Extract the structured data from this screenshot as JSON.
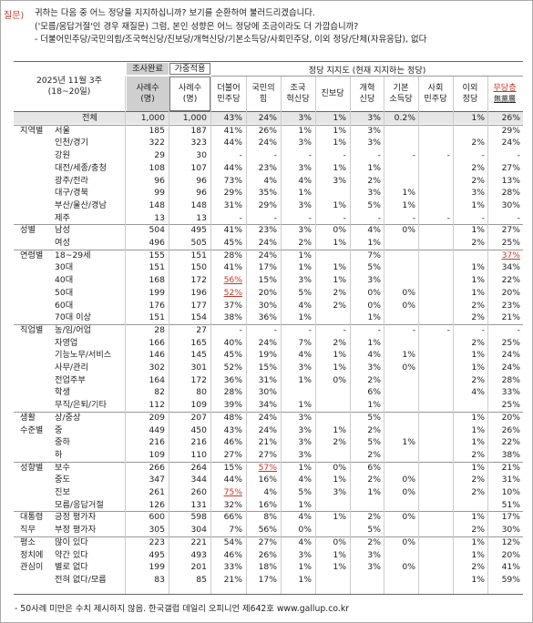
{
  "question": {
    "label": "질문)",
    "lines": [
      "귀하는 다음 중 어느 정당을 지지하십니까? 보기를 순환하여 불러드리겠습니다.",
      "('모름/응답거절'인 경우 재질문) 그럼, 본인 성향은 어느 정당에 조금이라도 더 가깝습니까?",
      "- 더불어민주당/국민의힘/조국혁신당/진보당/개혁신당/기본소득당/사회민주당, 이외 정당/단체(자유응답), 없다"
    ]
  },
  "table": {
    "period_line1": "2025년 11월 3주",
    "period_line2": "(18~20일)",
    "head_sample": "조사완료",
    "head_weighted": "가중적용",
    "head_cases1": "사례수",
    "head_cases2": "(명)",
    "group_header": "정당 지지도 (현재 지지하는 정당)",
    "parties": [
      [
        "더불어",
        "민주당"
      ],
      [
        "국민의",
        "힘"
      ],
      [
        "조국",
        "혁신당"
      ],
      [
        "진보당",
        ""
      ],
      [
        "개혁",
        "신당"
      ],
      [
        "기본",
        "소득당"
      ],
      [
        "사회",
        "민주당"
      ],
      [
        "이외",
        "정당"
      ],
      [
        "무당층",
        "無黨層"
      ]
    ],
    "rows": [
      {
        "cat": "",
        "sub": "전체",
        "n1": "1,000",
        "n2": "1,000",
        "v": [
          "43%",
          "24%",
          "3%",
          "1%",
          "3%",
          "0.2%",
          "",
          "1%",
          "26%"
        ]
      },
      {
        "cat": "지역별",
        "sub": "서울",
        "n1": "185",
        "n2": "187",
        "v": [
          "41%",
          "26%",
          "1%",
          "1%",
          "3%",
          "",
          "",
          "",
          "29%"
        ]
      },
      {
        "cat": "",
        "sub": "인천/경기",
        "n1": "322",
        "n2": "323",
        "v": [
          "44%",
          "24%",
          "3%",
          "1%",
          "3%",
          "",
          "",
          "2%",
          "24%"
        ]
      },
      {
        "cat": "",
        "sub": "강원",
        "n1": "29",
        "n2": "30",
        "v": [
          "-",
          "-",
          "-",
          "-",
          "-",
          "-",
          "-",
          "-",
          "-"
        ]
      },
      {
        "cat": "",
        "sub": "대전/세종/충청",
        "n1": "108",
        "n2": "107",
        "v": [
          "44%",
          "23%",
          "3%",
          "1%",
          "1%",
          "",
          "",
          "2%",
          "27%"
        ]
      },
      {
        "cat": "",
        "sub": "광주/전라",
        "n1": "96",
        "n2": "96",
        "v": [
          "73%",
          "4%",
          "4%",
          "3%",
          "2%",
          "",
          "",
          "2%",
          "13%"
        ]
      },
      {
        "cat": "",
        "sub": "대구/경북",
        "n1": "99",
        "n2": "96",
        "v": [
          "29%",
          "35%",
          "1%",
          "",
          "3%",
          "1%",
          "",
          "3%",
          "28%"
        ]
      },
      {
        "cat": "",
        "sub": "부산/울산/경남",
        "n1": "148",
        "n2": "148",
        "v": [
          "31%",
          "29%",
          "3%",
          "1%",
          "5%",
          "1%",
          "",
          "1%",
          "30%"
        ]
      },
      {
        "cat": "",
        "sub": "제주",
        "n1": "13",
        "n2": "13",
        "v": [
          "-",
          "-",
          "-",
          "-",
          "-",
          "-",
          "-",
          "-",
          "-"
        ]
      },
      {
        "cat": "성별",
        "sub": "남성",
        "n1": "504",
        "n2": "495",
        "v": [
          "41%",
          "23%",
          "3%",
          "0%",
          "4%",
          "0%",
          "",
          "1%",
          "27%"
        ]
      },
      {
        "cat": "",
        "sub": "여성",
        "n1": "496",
        "n2": "505",
        "v": [
          "45%",
          "24%",
          "2%",
          "1%",
          "1%",
          "",
          "",
          "2%",
          "25%"
        ]
      },
      {
        "cat": "연령별",
        "sub": "18~29세",
        "n1": "155",
        "n2": "151",
        "v": [
          "28%",
          "24%",
          "1%",
          "",
          "7%",
          "",
          "",
          "",
          "37%"
        ]
      },
      {
        "cat": "",
        "sub": "30대",
        "n1": "151",
        "n2": "150",
        "v": [
          "41%",
          "17%",
          "1%",
          "1%",
          "5%",
          "",
          "",
          "1%",
          "34%"
        ]
      },
      {
        "cat": "",
        "sub": "40대",
        "n1": "168",
        "n2": "172",
        "v": [
          "56%",
          "15%",
          "3%",
          "1%",
          "3%",
          "",
          "",
          "1%",
          "22%"
        ]
      },
      {
        "cat": "",
        "sub": "50대",
        "n1": "199",
        "n2": "196",
        "v": [
          "52%",
          "20%",
          "5%",
          "2%",
          "0%",
          "0%",
          "",
          "1%",
          "20%"
        ]
      },
      {
        "cat": "",
        "sub": "60대",
        "n1": "176",
        "n2": "177",
        "v": [
          "37%",
          "30%",
          "4%",
          "2%",
          "0%",
          "0%",
          "",
          "2%",
          "23%"
        ]
      },
      {
        "cat": "",
        "sub": "70대 이상",
        "n1": "151",
        "n2": "154",
        "v": [
          "38%",
          "36%",
          "1%",
          "",
          "1%",
          "",
          "",
          "2%",
          "21%"
        ]
      },
      {
        "cat": "직업별",
        "sub": "농/임/어업",
        "n1": "28",
        "n2": "27",
        "v": [
          "-",
          "-",
          "-",
          "-",
          "-",
          "-",
          "-",
          "-",
          "-"
        ]
      },
      {
        "cat": "",
        "sub": "자영업",
        "n1": "166",
        "n2": "165",
        "v": [
          "40%",
          "24%",
          "7%",
          "2%",
          "1%",
          "",
          "",
          "2%",
          "25%"
        ]
      },
      {
        "cat": "",
        "sub": "기능노무/서비스",
        "n1": "146",
        "n2": "145",
        "v": [
          "45%",
          "19%",
          "4%",
          "1%",
          "4%",
          "1%",
          "",
          "1%",
          "24%"
        ]
      },
      {
        "cat": "",
        "sub": "사무/관리",
        "n1": "302",
        "n2": "301",
        "v": [
          "52%",
          "15%",
          "3%",
          "1%",
          "3%",
          "0%",
          "",
          "1%",
          "24%"
        ]
      },
      {
        "cat": "",
        "sub": "전업주부",
        "n1": "164",
        "n2": "172",
        "v": [
          "36%",
          "31%",
          "1%",
          "0%",
          "2%",
          "",
          "",
          "2%",
          "28%"
        ]
      },
      {
        "cat": "",
        "sub": "학생",
        "n1": "82",
        "n2": "80",
        "v": [
          "28%",
          "30%",
          "",
          "",
          "6%",
          "",
          "",
          "4%",
          "33%"
        ]
      },
      {
        "cat": "",
        "sub": "무직/은퇴/기타",
        "n1": "112",
        "n2": "109",
        "v": [
          "39%",
          "34%",
          "1%",
          "",
          "1%",
          "",
          "",
          "",
          "25%"
        ]
      },
      {
        "cat": "생활",
        "sub": "상/중상",
        "n1": "209",
        "n2": "207",
        "v": [
          "48%",
          "24%",
          "3%",
          "",
          "5%",
          "",
          "",
          "1%",
          "20%"
        ]
      },
      {
        "cat": "수준별",
        "sub": "중",
        "n1": "449",
        "n2": "450",
        "v": [
          "43%",
          "24%",
          "3%",
          "1%",
          "2%",
          "",
          "",
          "1%",
          "26%"
        ]
      },
      {
        "cat": "",
        "sub": "중하",
        "n1": "216",
        "n2": "216",
        "v": [
          "46%",
          "21%",
          "3%",
          "2%",
          "5%",
          "1%",
          "",
          "1%",
          "22%"
        ]
      },
      {
        "cat": "",
        "sub": "하",
        "n1": "109",
        "n2": "110",
        "v": [
          "27%",
          "27%",
          "3%",
          "",
          "2%",
          "",
          "",
          "2%",
          "38%"
        ]
      },
      {
        "cat": "성향별",
        "sub": "보수",
        "n1": "266",
        "n2": "264",
        "v": [
          "15%",
          "57%",
          "1%",
          "0%",
          "6%",
          "",
          "",
          "1%",
          "21%"
        ]
      },
      {
        "cat": "",
        "sub": "중도",
        "n1": "347",
        "n2": "344",
        "v": [
          "44%",
          "16%",
          "4%",
          "1%",
          "2%",
          "0%",
          "",
          "2%",
          "31%"
        ]
      },
      {
        "cat": "",
        "sub": "진보",
        "n1": "261",
        "n2": "260",
        "v": [
          "75%",
          "4%",
          "5%",
          "3%",
          "1%",
          "0%",
          "",
          "2%",
          "10%"
        ]
      },
      {
        "cat": "",
        "sub": "모름/응답거절",
        "n1": "126",
        "n2": "131",
        "v": [
          "32%",
          "16%",
          "1%",
          "",
          "",
          "",
          "",
          "",
          "51%"
        ]
      },
      {
        "cat": "대통령",
        "sub": "긍정 평가자",
        "n1": "600",
        "n2": "598",
        "v": [
          "66%",
          "8%",
          "4%",
          "1%",
          "2%",
          "0%",
          "",
          "1%",
          "17%"
        ]
      },
      {
        "cat": "직무",
        "sub": "부정 평가자",
        "n1": "305",
        "n2": "304",
        "v": [
          "7%",
          "56%",
          "0%",
          "",
          "5%",
          "",
          "",
          "2%",
          "30%"
        ]
      },
      {
        "cat": "평소",
        "sub": "많이 있다",
        "n1": "223",
        "n2": "221",
        "v": [
          "54%",
          "27%",
          "4%",
          "0%",
          "2%",
          "0%",
          "",
          "1%",
          "12%"
        ]
      },
      {
        "cat": "정치에",
        "sub": "약간 있다",
        "n1": "495",
        "n2": "493",
        "v": [
          "46%",
          "26%",
          "3%",
          "1%",
          "3%",
          "",
          "",
          "1%",
          "20%"
        ]
      },
      {
        "cat": "관심이",
        "sub": "별로 없다",
        "n1": "199",
        "n2": "201",
        "v": [
          "33%",
          "18%",
          "1%",
          "1%",
          "3%",
          "0%",
          "",
          "2%",
          "41%"
        ]
      },
      {
        "cat": "",
        "sub": "전혀 없다/모름",
        "n1": "83",
        "n2": "85",
        "v": [
          "21%",
          "17%",
          "1%",
          "",
          "",
          "",
          "",
          "1%",
          "59%"
        ]
      }
    ]
  },
  "highlights": [
    {
      "row": 13,
      "col": 0
    },
    {
      "row": 14,
      "col": 0
    },
    {
      "row": 28,
      "col": 1
    },
    {
      "row": 30,
      "col": 0
    },
    {
      "row": 11,
      "col": 8
    }
  ],
  "footnote": "- 50사례 미만은 수치 제시하지 않음. 한국갤럽 데일리 오피니언 제642호 www.gallup.co.kr",
  "colors": {
    "question_label": "#c0392b",
    "header_shade": "#cfcfcf",
    "highlight": "#c0392b"
  }
}
